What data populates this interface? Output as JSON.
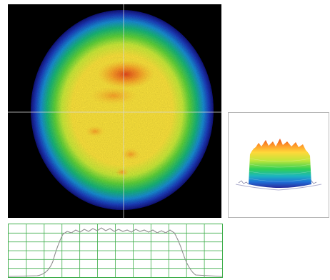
{
  "beam_view": {
    "crosshair_color": "#d8d8d8",
    "background_color": "#000000",
    "colormap": [
      "#1a1aa0",
      "#1f5fd9",
      "#18a9c9",
      "#1fc06a",
      "#6fdc3c",
      "#d6ef3a",
      "#ffe23a",
      "#ffb42a",
      "#ff7a1f",
      "#e8401a"
    ]
  },
  "surface_view": {
    "colormap": [
      "#2a2a9a",
      "#1f70d8",
      "#1cb5c0",
      "#2fcf55",
      "#bfe63a",
      "#ffd83a",
      "#ff9a2a",
      "#e8501c"
    ]
  },
  "profile_plot": {
    "grid_color": "#3fae4b",
    "trace_color": "#8f8f8f",
    "vertical_divisions": 12,
    "horizontal_divisions": 6
  }
}
